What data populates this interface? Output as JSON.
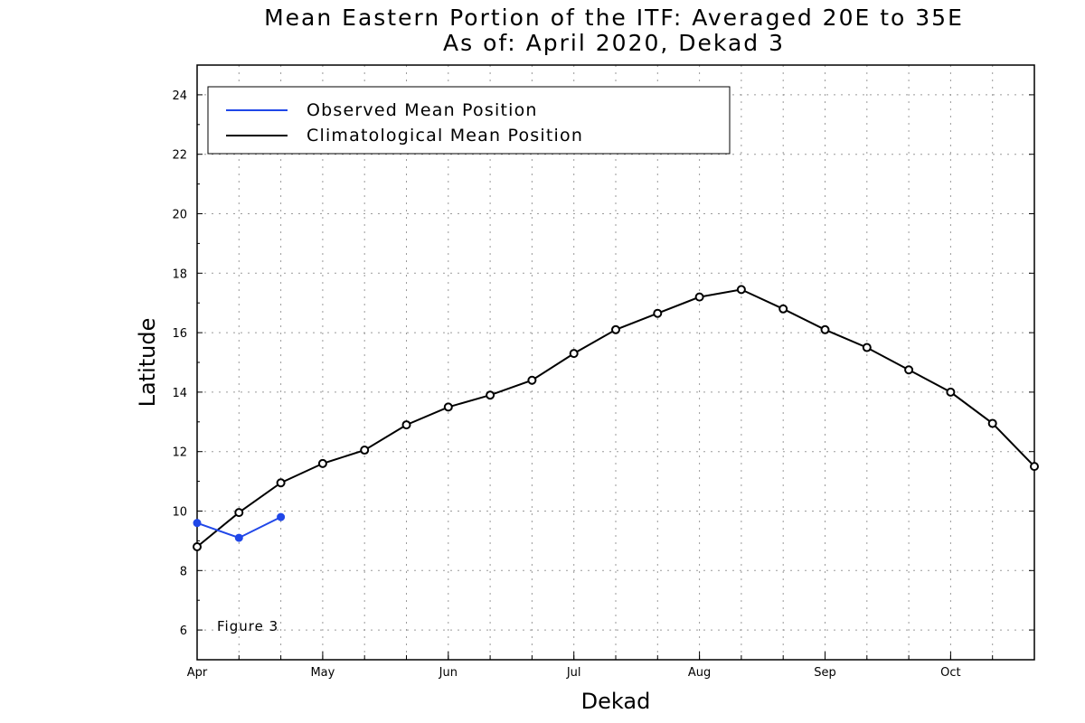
{
  "chart_data": {
    "type": "line",
    "title_line1": "Mean Eastern Portion of the ITF: Averaged 20E to 35E",
    "title_line2": "As of: April 2020, Dekad 3",
    "xlabel": "Dekad",
    "ylabel": "Latitude",
    "annotation": "Figure 3",
    "ylim": [
      5,
      25
    ],
    "yticks": [
      6,
      8,
      10,
      12,
      14,
      16,
      18,
      20,
      22,
      24
    ],
    "xlim": [
      0,
      20
    ],
    "month_ticks": [
      {
        "x": 0,
        "label": "Apr"
      },
      {
        "x": 3,
        "label": "May"
      },
      {
        "x": 6,
        "label": "Jun"
      },
      {
        "x": 9,
        "label": "Jul"
      },
      {
        "x": 12,
        "label": "Aug"
      },
      {
        "x": 15,
        "label": "Sep"
      },
      {
        "x": 18,
        "label": "Oct"
      }
    ],
    "grid": true,
    "legend_position": "top-left",
    "series": [
      {
        "name": "Observed Mean Position",
        "color": "#2047e8",
        "marker": "filled-circle",
        "x": [
          0,
          1,
          2
        ],
        "values": [
          9.6,
          9.1,
          9.8
        ]
      },
      {
        "name": "Climatological Mean Position",
        "color": "#000000",
        "marker": "open-circle",
        "x": [
          0,
          1,
          2,
          3,
          4,
          5,
          6,
          7,
          8,
          9,
          10,
          11,
          12,
          13,
          14,
          15,
          16,
          17,
          18,
          19,
          20
        ],
        "values": [
          8.8,
          9.95,
          10.95,
          11.6,
          12.05,
          12.9,
          13.5,
          13.9,
          14.4,
          15.3,
          16.1,
          16.65,
          17.2,
          17.45,
          16.8,
          16.1,
          15.5,
          14.75,
          14.0,
          12.95,
          11.5
        ]
      }
    ]
  }
}
